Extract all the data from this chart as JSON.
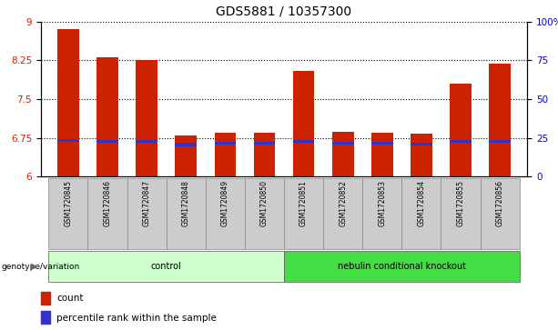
{
  "title": "GDS5881 / 10357300",
  "samples": [
    "GSM1720845",
    "GSM1720846",
    "GSM1720847",
    "GSM1720848",
    "GSM1720849",
    "GSM1720850",
    "GSM1720851",
    "GSM1720852",
    "GSM1720853",
    "GSM1720854",
    "GSM1720855",
    "GSM1720856"
  ],
  "count_values": [
    8.85,
    8.3,
    8.25,
    6.8,
    6.85,
    6.85,
    8.05,
    6.87,
    6.85,
    6.83,
    7.8,
    8.18
  ],
  "percentile_values": [
    6.7,
    6.68,
    6.68,
    6.62,
    6.65,
    6.65,
    6.68,
    6.65,
    6.64,
    6.63,
    6.68,
    6.68
  ],
  "y_min": 6.0,
  "y_max": 9.0,
  "y_ticks": [
    6.0,
    6.75,
    7.5,
    8.25,
    9.0
  ],
  "y_tick_labels": [
    "6",
    "6.75",
    "7.5",
    "8.25",
    "9"
  ],
  "y2_ticks": [
    0,
    25,
    50,
    75,
    100
  ],
  "y2_tick_labels": [
    "0",
    "25",
    "50",
    "75",
    "100%"
  ],
  "bar_color": "#cc2200",
  "percentile_color": "#3333cc",
  "bar_width": 0.55,
  "groups": [
    {
      "label": "control",
      "indices": [
        0,
        1,
        2,
        3,
        4,
        5
      ],
      "color": "#ccffcc"
    },
    {
      "label": "nebulin conditional knockout",
      "indices": [
        6,
        7,
        8,
        9,
        10,
        11
      ],
      "color": "#44dd44"
    }
  ],
  "genotype_label": "genotype/variation",
  "legend_items": [
    {
      "label": "count",
      "color": "#cc2200"
    },
    {
      "label": "percentile rank within the sample",
      "color": "#3333cc"
    }
  ],
  "grid_color": "#000000",
  "tick_label_color_left": "#cc2200",
  "tick_label_color_right": "#0000cc",
  "title_fontsize": 10,
  "axis_fontsize": 7.5,
  "legend_fontsize": 7.5,
  "sample_fontsize": 5.5
}
